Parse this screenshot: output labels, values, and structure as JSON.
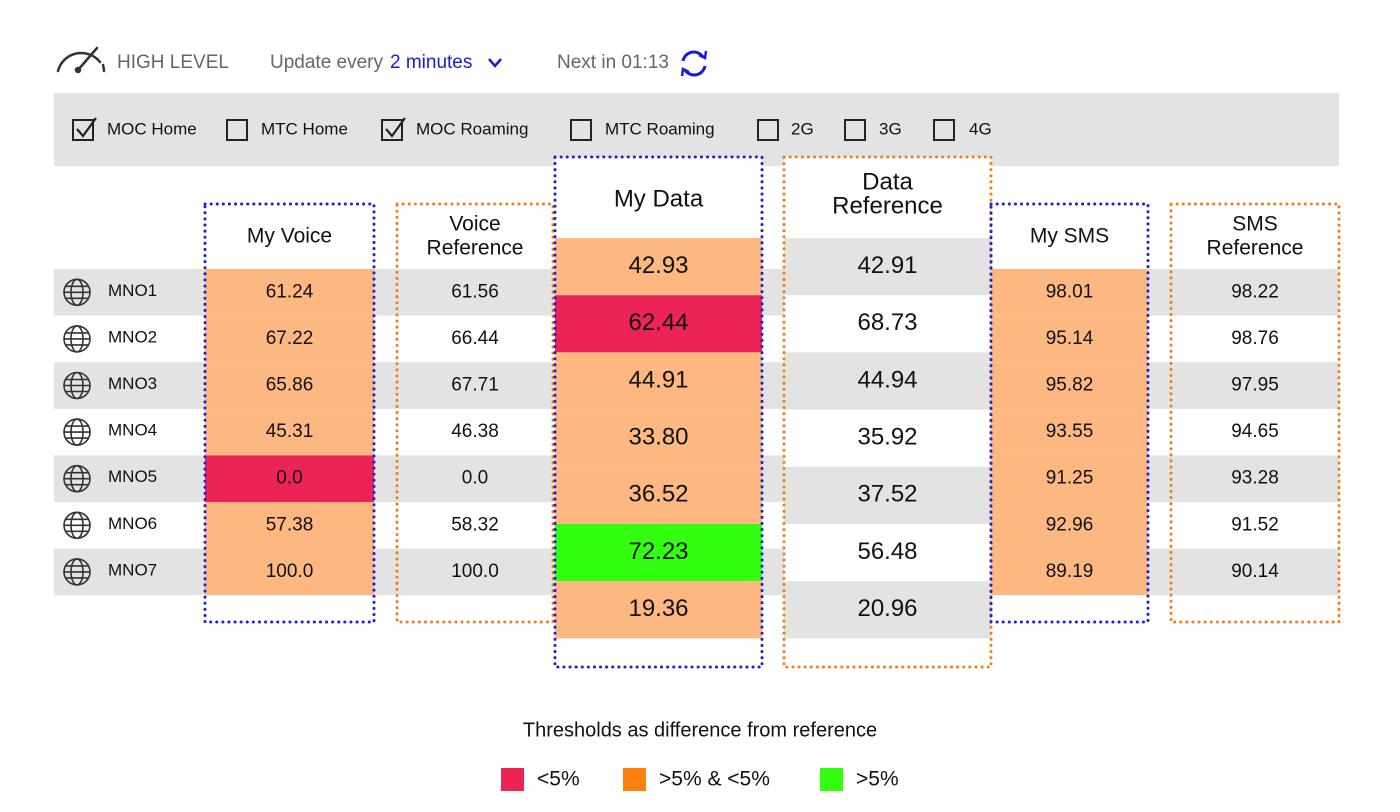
{
  "header": {
    "title": "HIGH LEVEL",
    "update_label": "Update every",
    "update_value": "2 minutes",
    "next_label": "Next in 01:13"
  },
  "filters": [
    {
      "label": "MOC Home",
      "checked": true
    },
    {
      "label": "MTC Home",
      "checked": false
    },
    {
      "label": "MOC Roaming",
      "checked": true
    },
    {
      "label": "MTC Roaming",
      "checked": false
    },
    {
      "label": "2G",
      "checked": false
    },
    {
      "label": "3G",
      "checked": false
    },
    {
      "label": "4G",
      "checked": false
    }
  ],
  "table": {
    "rows": [
      "MNO1",
      "MNO2",
      "MNO3",
      "MNO4",
      "MNO5",
      "MNO6",
      "MNO7"
    ],
    "columns": [
      {
        "header": [
          "My Voice"
        ],
        "border_color": "#1f1fd6",
        "values": [
          "61.24",
          "67.22",
          "65.86",
          "45.31",
          "0.0",
          "57.38",
          "100.0"
        ],
        "colors": [
          "#fdb882",
          "#fdb882",
          "#fdb882",
          "#fdb882",
          "#ec2456",
          "#fdb882",
          "#fdb882"
        ]
      },
      {
        "header": [
          "Voice",
          "Reference"
        ],
        "border_color": "#f07f1a",
        "values": [
          "61.56",
          "66.44",
          "67.71",
          "46.38",
          "0.0",
          "58.32",
          "100.0"
        ]
      },
      {
        "header": [
          "My Data"
        ],
        "border_color": "#1f1fd6",
        "values": [
          "42.93",
          "62.44",
          "44.91",
          "33.80",
          "36.52",
          "72.23",
          "19.36"
        ],
        "colors": [
          "#fdb882",
          "#ec2456",
          "#fdb882",
          "#fdb882",
          "#fdb882",
          "#33ff11",
          "#fdb882"
        ]
      },
      {
        "header": [
          "Data",
          "Reference"
        ],
        "border_color": "#f07f1a",
        "values": [
          "42.91",
          "68.73",
          "44.94",
          "35.92",
          "37.52",
          "56.48",
          "20.96"
        ]
      },
      {
        "header": [
          "My SMS"
        ],
        "border_color": "#1f1fd6",
        "values": [
          "98.01",
          "95.14",
          "95.82",
          "93.55",
          "91.25",
          "92.96",
          "89.19"
        ],
        "colors": [
          "#fdb882",
          "#fdb882",
          "#fdb882",
          "#fdb882",
          "#fdb882",
          "#fdb882",
          "#fdb882"
        ]
      },
      {
        "header": [
          "SMS",
          "Reference"
        ],
        "border_color": "#f07f1a",
        "values": [
          "98.22",
          "98.76",
          "97.95",
          "94.65",
          "93.28",
          "91.52",
          "90.14"
        ]
      }
    ]
  },
  "legend": {
    "title": "Thresholds as difference from reference",
    "items": [
      {
        "label": "<5%",
        "color": "#ec2456"
      },
      {
        "label": ">5% & <5%",
        "color": "#ff7f0f"
      },
      {
        "label": ">5%",
        "color": "#33ff11"
      }
    ]
  }
}
